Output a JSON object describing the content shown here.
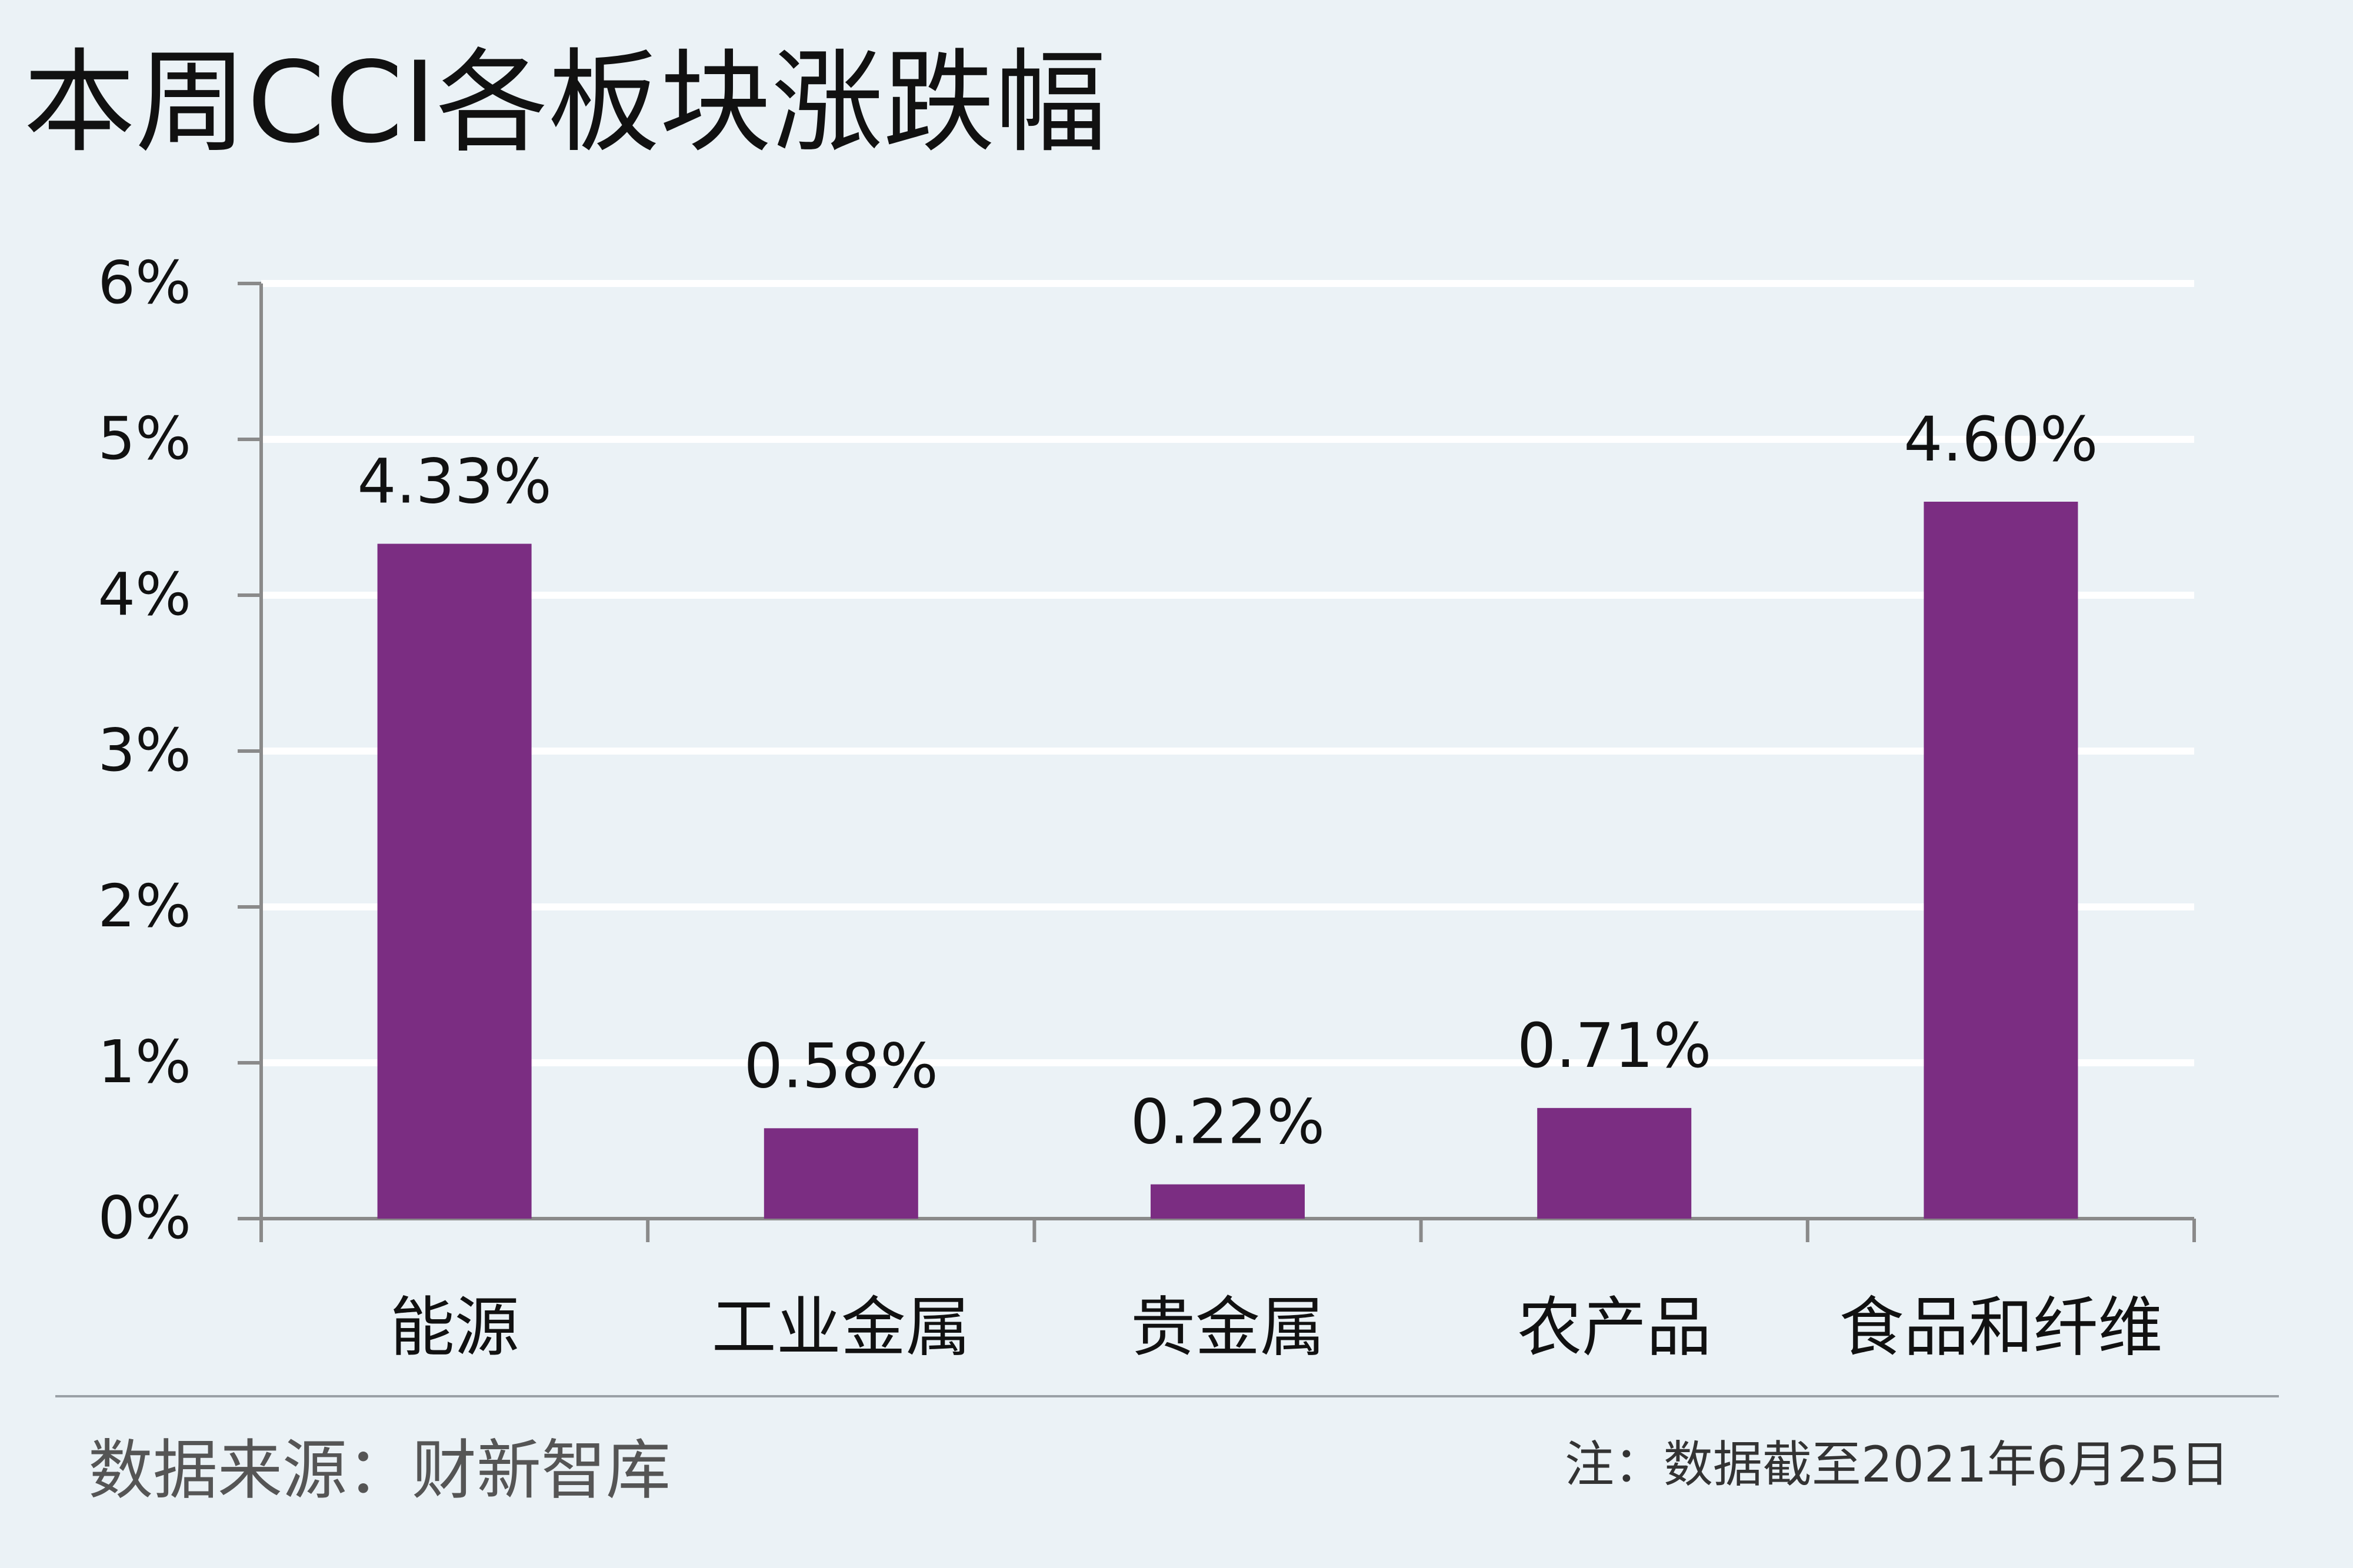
{
  "title": "本周CCI各板块涨跌幅",
  "source": "数据来源：财新智库",
  "note": "注：数据截至2021年6月25日",
  "colors": {
    "bar": "#7b2d82",
    "background": "#ebf2f6",
    "gridline": "#ffffff",
    "axis": "#8a8a8a",
    "text": "#111111"
  },
  "chart_data": {
    "type": "bar",
    "categories": [
      "能源",
      "工业金属",
      "贵金属",
      "农产品",
      "食品和纤维"
    ],
    "values": [
      4.33,
      0.58,
      0.22,
      0.71,
      4.6
    ],
    "data_labels": [
      "4.33%",
      "0.58%",
      "0.22%",
      "0.71%",
      "4.60%"
    ],
    "yticks": [
      "0%",
      "1%",
      "2%",
      "3%",
      "4%",
      "5%",
      "6%"
    ],
    "ylim": [
      0,
      6
    ],
    "grid": true,
    "legend": "none"
  }
}
